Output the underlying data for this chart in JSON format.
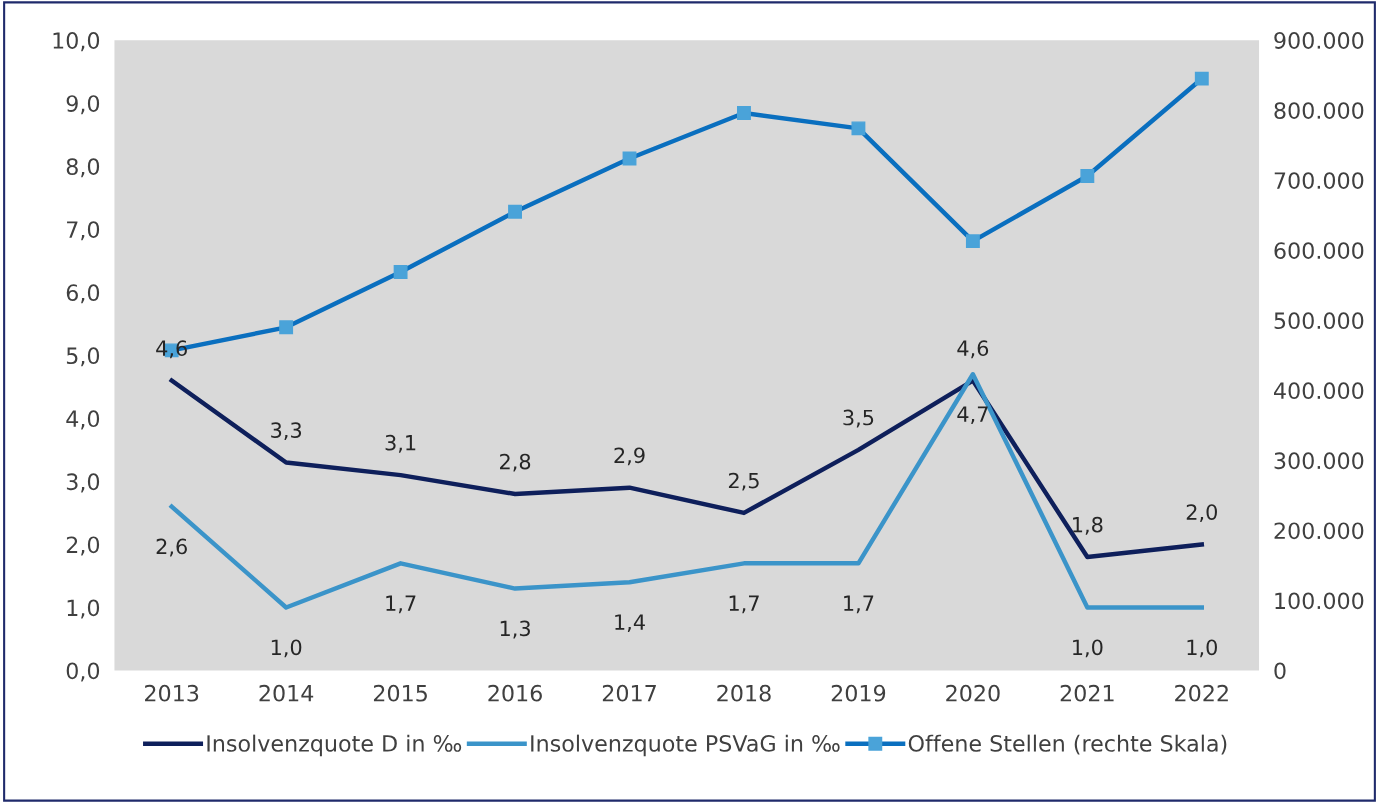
{
  "chart_data": {
    "type": "line",
    "categories": [
      "2013",
      "2014",
      "2015",
      "2016",
      "2017",
      "2018",
      "2019",
      "2020",
      "2021",
      "2022"
    ],
    "series": [
      {
        "name": "Insolvenzquote D in ‰",
        "color": "#0e1f5b",
        "values": [
          4.6,
          3.3,
          3.1,
          2.8,
          2.9,
          2.5,
          3.5,
          4.6,
          1.8,
          2.0
        ],
        "value_labels": [
          "4,6",
          "3,3",
          "3,1",
          "2,8",
          "2,9",
          "2,5",
          "3,5",
          "4,6",
          "1,8",
          "2,0"
        ],
        "marker": "none"
      },
      {
        "name": "Insolvenzquote PSVaG in ‰",
        "color": "#3b94c9",
        "values": [
          2.6,
          1.0,
          1.7,
          1.3,
          1.4,
          1.7,
          1.7,
          4.7,
          1.0,
          1.0
        ],
        "value_labels": [
          "2,6",
          "1,0",
          "1,7",
          "1,3",
          "1,4",
          "1,7",
          "1,7",
          "4,7",
          "1,0",
          "1,0"
        ],
        "marker": "none"
      },
      {
        "name": "Offene Stellen (rechte Skala)",
        "color": "#0a6fbf",
        "axis": "y2",
        "marker": "square",
        "values": [
          457000,
          490000,
          569000,
          655000,
          731000,
          796000,
          774000,
          613000,
          706000,
          845000
        ]
      }
    ],
    "ylim": [
      0,
      10
    ],
    "yticks": [
      {
        "value": 0,
        "label": "0,0"
      },
      {
        "value": 1,
        "label": "1,0"
      },
      {
        "value": 2,
        "label": "2,0"
      },
      {
        "value": 3,
        "label": "3,0"
      },
      {
        "value": 4,
        "label": "4,0"
      },
      {
        "value": 5,
        "label": "5,0"
      },
      {
        "value": 6,
        "label": "6,0"
      },
      {
        "value": 7,
        "label": "7,0"
      },
      {
        "value": 8,
        "label": "8,0"
      },
      {
        "value": 9,
        "label": "9,0"
      },
      {
        "value": 10,
        "label": "10,0"
      }
    ],
    "y2lim": [
      0,
      900000
    ],
    "y2ticks": [
      0,
      {
        "value": 100000,
        "label": "100.000"
      },
      {
        "value": 200000,
        "label": "200.000"
      },
      {
        "value": 300000,
        "label": "300.000"
      },
      {
        "value": 400000,
        "label": "400.000"
      },
      {
        "value": 500000,
        "label": "500.000"
      },
      {
        "value": 600000,
        "label": "600.000"
      },
      {
        "value": 700000,
        "label": "700.000"
      },
      {
        "value": 800000,
        "label": "800.000"
      },
      {
        "value": 900000,
        "label": "900.000"
      }
    ],
    "grid": false,
    "legend": "bottom",
    "line_style": "solid"
  }
}
